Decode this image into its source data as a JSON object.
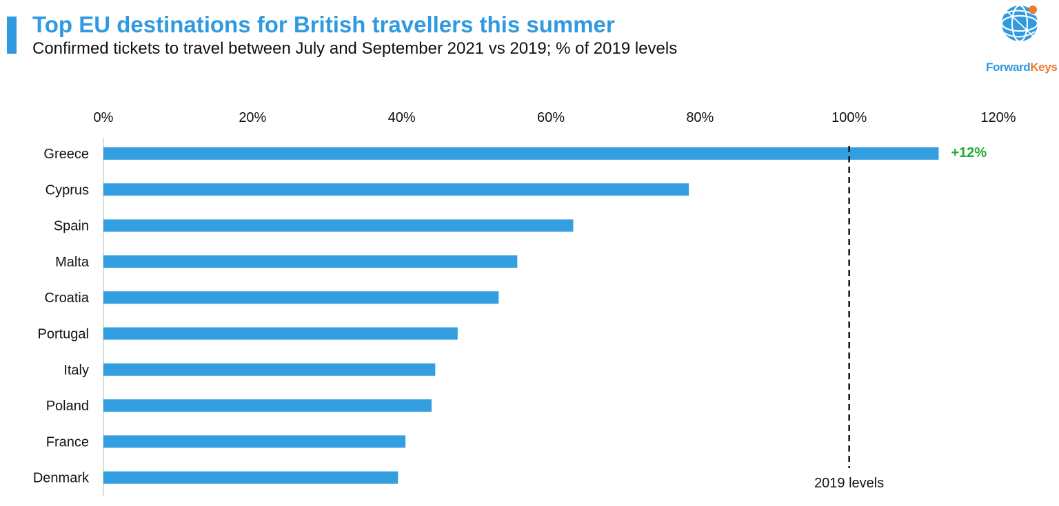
{
  "title": "Top EU destinations for British travellers this summer",
  "subtitle": "Confirmed tickets to travel between July and September 2021 vs 2019; % of 2019 levels",
  "logo": {
    "part1": "Forward",
    "part2": "Keys"
  },
  "colors": {
    "accent": "#2f9ae0",
    "bar": "#339ee0",
    "positive": "#22aa2c",
    "logo_orange": "#f07a2a"
  },
  "chart_data": {
    "type": "bar",
    "orientation": "horizontal",
    "title": "Top EU destinations for British travellers this summer",
    "subtitle": "Confirmed tickets to travel between July and September 2021 vs 2019; % of 2019 levels",
    "categories": [
      "Greece",
      "Cyprus",
      "Spain",
      "Malta",
      "Croatia",
      "Portugal",
      "Italy",
      "Poland",
      "France",
      "Denmark"
    ],
    "values": [
      112,
      78.5,
      63,
      55.5,
      53,
      47.5,
      44.5,
      44,
      40.5,
      39.5
    ],
    "unit": "%",
    "xlim": [
      0,
      120
    ],
    "xticks": [
      "0%",
      "20%",
      "40%",
      "60%",
      "80%",
      "100%",
      "120%"
    ],
    "x_axis_position": "top",
    "grid": false,
    "reference_line": {
      "value": 100,
      "label": "2019 levels",
      "style": "dashed"
    },
    "annotations": [
      {
        "category": "Greece",
        "text": "+12%"
      }
    ]
  }
}
